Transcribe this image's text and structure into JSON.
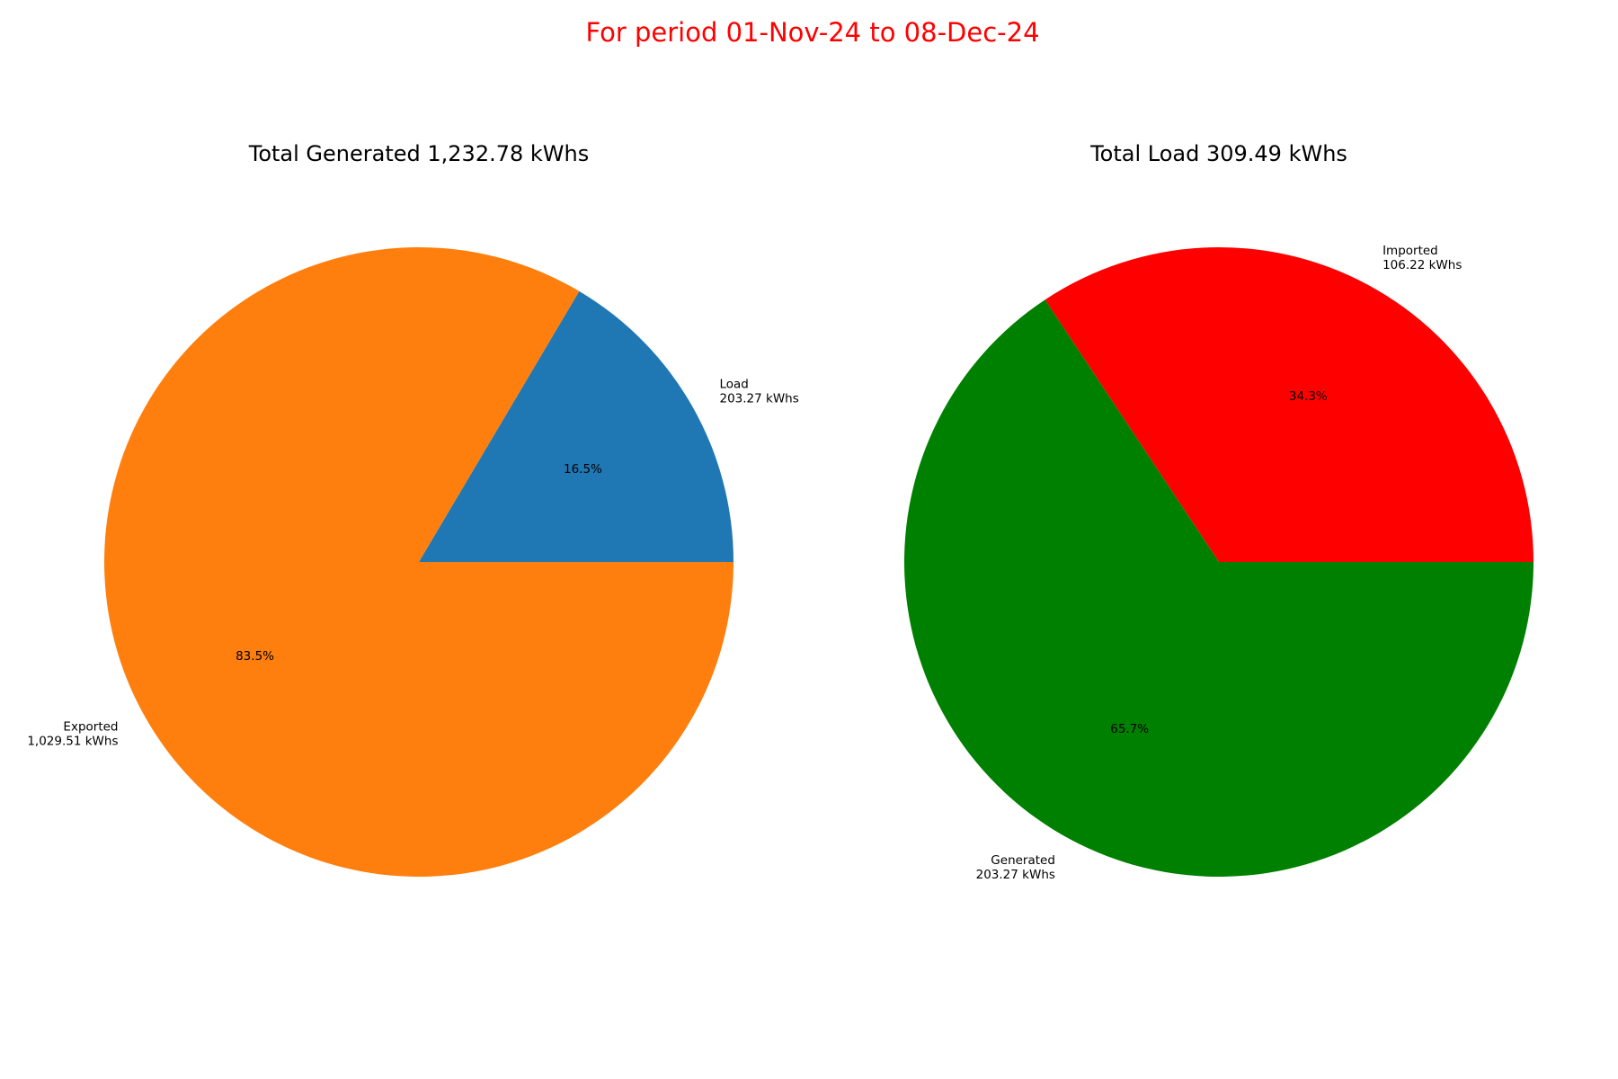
{
  "figure": {
    "suptitle": "For period 01-Nov-24 to 08-Dec-24",
    "suptitle_color": "#ff0000"
  },
  "chart_data": [
    {
      "type": "pie",
      "title": "Total Generated 1,232.78 kWhs",
      "slices": [
        {
          "name": "Load",
          "value_label": "203.27 kWhs",
          "value": 203.27,
          "percent_label": "16.5%",
          "color": "#1f77b4"
        },
        {
          "name": "Exported",
          "value_label": "1,029.51 kWhs",
          "value": 1029.51,
          "percent_label": "83.5%",
          "color": "#ff7f0e"
        }
      ]
    },
    {
      "type": "pie",
      "title": "Total Load 309.49 kWhs",
      "slices": [
        {
          "name": "Imported",
          "value_label": "106.22 kWhs",
          "value": 106.22,
          "percent_label": "34.3%",
          "color": "#ff0000"
        },
        {
          "name": "Generated",
          "value_label": "203.27 kWhs",
          "value": 203.27,
          "percent_label": "65.7%",
          "color": "#008000"
        }
      ]
    }
  ]
}
